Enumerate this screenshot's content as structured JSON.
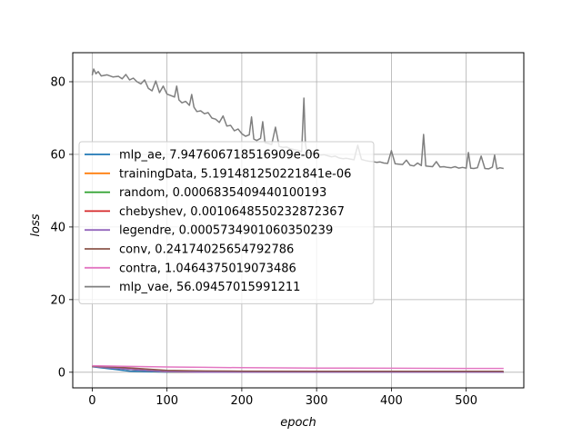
{
  "chart_data": {
    "type": "line",
    "title": "",
    "xlabel": "epoch",
    "ylabel": "loss",
    "xlim": [
      -26,
      577
    ],
    "ylim": [
      -4.3,
      88
    ],
    "xticks": [
      0,
      100,
      200,
      300,
      400,
      500
    ],
    "yticks": [
      0,
      20,
      40,
      60,
      80
    ],
    "grid": true,
    "legend_position": "center-left",
    "series": [
      {
        "name": "mlp_ae, 7.947606718516909e-06",
        "color": "#1f77b4",
        "x": [
          0,
          50,
          100,
          150,
          200,
          300,
          400,
          500,
          550
        ],
        "y": [
          1.5,
          0.3,
          0.05,
          0.02,
          0.01,
          0.005,
          0.002,
          0.0,
          0.0
        ]
      },
      {
        "name": "trainingData, 5.191481250221841e-06",
        "color": "#ff7f0e",
        "x": [
          0,
          50,
          100,
          150,
          200,
          300,
          400,
          500,
          550
        ],
        "y": [
          1.6,
          0.8,
          0.1,
          0.03,
          0.01,
          0.005,
          0.002,
          0.0,
          0.0
        ]
      },
      {
        "name": "random, 0.0006835409440100193",
        "color": "#2ca02c",
        "x": [
          0,
          50,
          100,
          150,
          200,
          300,
          400,
          500,
          550
        ],
        "y": [
          1.6,
          0.8,
          0.1,
          0.03,
          0.01,
          0.005,
          0.002,
          0.001,
          0.0007
        ]
      },
      {
        "name": "chebyshev, 0.0010648550232872367",
        "color": "#d62728",
        "x": [
          0,
          50,
          100,
          150,
          200,
          300,
          400,
          500,
          550
        ],
        "y": [
          1.6,
          0.9,
          0.15,
          0.04,
          0.02,
          0.008,
          0.003,
          0.0015,
          0.001
        ]
      },
      {
        "name": "legendre, 0.0005734901060350239",
        "color": "#9467bd",
        "x": [
          0,
          50,
          100,
          150,
          200,
          300,
          400,
          500,
          550
        ],
        "y": [
          1.6,
          0.8,
          0.12,
          0.03,
          0.01,
          0.005,
          0.002,
          0.001,
          0.0006
        ]
      },
      {
        "name": "conv, 0.24174025654792786",
        "color": "#8c564b",
        "x": [
          0,
          50,
          100,
          150,
          200,
          300,
          400,
          500,
          550
        ],
        "y": [
          1.7,
          1.2,
          0.5,
          0.35,
          0.3,
          0.27,
          0.25,
          0.245,
          0.242
        ]
      },
      {
        "name": "contra, 1.0464375019073486",
        "color": "#e377c2",
        "x": [
          0,
          50,
          100,
          150,
          200,
          300,
          400,
          500,
          550
        ],
        "y": [
          1.8,
          1.6,
          1.45,
          1.35,
          1.25,
          1.15,
          1.1,
          1.06,
          1.046
        ]
      },
      {
        "name": "mlp_vae, 56.09457015991211",
        "color": "#7f7f7f",
        "x": [
          0,
          2,
          5,
          8,
          12,
          20,
          28,
          35,
          40,
          45,
          50,
          55,
          60,
          65,
          70,
          75,
          80,
          85,
          90,
          95,
          100,
          105,
          110,
          113,
          116,
          120,
          125,
          130,
          133,
          136,
          140,
          145,
          150,
          155,
          160,
          165,
          170,
          175,
          180,
          185,
          190,
          195,
          200,
          205,
          210,
          213,
          216,
          220,
          225,
          228,
          231,
          235,
          240,
          245,
          250,
          255,
          260,
          265,
          270,
          275,
          280,
          283,
          285,
          287,
          290,
          295,
          300,
          305,
          310,
          315,
          320,
          325,
          330,
          335,
          340,
          345,
          350,
          355,
          360,
          365,
          370,
          375,
          380,
          385,
          390,
          395,
          400,
          405,
          410,
          415,
          420,
          425,
          430,
          435,
          440,
          443,
          446,
          450,
          455,
          460,
          465,
          470,
          475,
          480,
          485,
          490,
          495,
          500,
          503,
          506,
          510,
          515,
          520,
          525,
          530,
          535,
          538,
          541,
          545,
          550
        ],
        "y": [
          81.8,
          83.5,
          82.2,
          82.8,
          81.6,
          81.9,
          81.3,
          81.5,
          80.8,
          82.0,
          80.5,
          81.0,
          80.0,
          79.4,
          80.5,
          78.2,
          77.5,
          80.2,
          77.0,
          78.8,
          76.6,
          76.2,
          75.8,
          78.8,
          75.0,
          74.2,
          74.6,
          73.5,
          76.5,
          73.0,
          71.8,
          72.0,
          71.2,
          71.5,
          70.0,
          69.7,
          68.8,
          70.6,
          67.8,
          68.0,
          66.5,
          67.0,
          65.7,
          65.0,
          65.4,
          70.3,
          64.2,
          63.8,
          64.4,
          69.0,
          63.2,
          63.0,
          62.7,
          67.5,
          62.2,
          61.9,
          62.0,
          61.5,
          61.3,
          61.1,
          60.7,
          75.5,
          63.0,
          60.6,
          60.4,
          60.2,
          60.0,
          59.8,
          59.9,
          59.6,
          59.3,
          59.5,
          59.0,
          58.8,
          58.9,
          58.7,
          58.5,
          62.5,
          58.6,
          58.3,
          58.1,
          58.0,
          57.8,
          57.9,
          57.6,
          57.5,
          61.0,
          57.4,
          57.3,
          57.2,
          58.4,
          57.0,
          56.8,
          57.6,
          56.9,
          65.5,
          56.8,
          56.7,
          56.6,
          58.0,
          56.5,
          56.6,
          56.4,
          56.3,
          56.6,
          56.2,
          56.4,
          56.2,
          60.5,
          56.2,
          56.1,
          56.3,
          59.5,
          56.1,
          56.0,
          56.5,
          59.8,
          56.0,
          56.3,
          56.1
        ]
      }
    ]
  }
}
